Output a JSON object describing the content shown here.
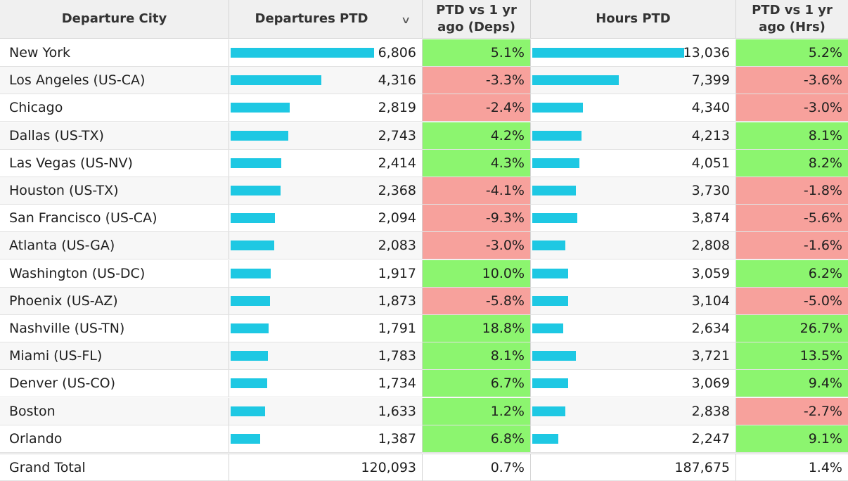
{
  "headers": {
    "city": "Departure City",
    "departures": "Departures PTD",
    "ptd_deps": "PTD vs 1 yr ago (Deps)",
    "hours": "Hours PTD",
    "ptd_hrs": "PTD vs 1 yr ago (Hrs)",
    "sort_icon": "chevron-down-icon"
  },
  "colors": {
    "bar": "#1ec8e3",
    "positive": "#8cf56f",
    "negative": "#f7a19c"
  },
  "rows": [
    {
      "city": "New York",
      "deps": "6,806",
      "deps_value": 6806,
      "ptd_deps": "5.1%",
      "hours": "13,036",
      "hours_value": 13036,
      "ptd_hrs": "5.2%"
    },
    {
      "city": "Los Angeles (US-CA)",
      "deps": "4,316",
      "deps_value": 4316,
      "ptd_deps": "-3.3%",
      "hours": "7,399",
      "hours_value": 7399,
      "ptd_hrs": "-3.6%"
    },
    {
      "city": "Chicago",
      "deps": "2,819",
      "deps_value": 2819,
      "ptd_deps": "-2.4%",
      "hours": "4,340",
      "hours_value": 4340,
      "ptd_hrs": "-3.0%"
    },
    {
      "city": "Dallas (US-TX)",
      "deps": "2,743",
      "deps_value": 2743,
      "ptd_deps": "4.2%",
      "hours": "4,213",
      "hours_value": 4213,
      "ptd_hrs": "8.1%"
    },
    {
      "city": "Las Vegas (US-NV)",
      "deps": "2,414",
      "deps_value": 2414,
      "ptd_deps": "4.3%",
      "hours": "4,051",
      "hours_value": 4051,
      "ptd_hrs": "8.2%"
    },
    {
      "city": "Houston (US-TX)",
      "deps": "2,368",
      "deps_value": 2368,
      "ptd_deps": "-4.1%",
      "hours": "3,730",
      "hours_value": 3730,
      "ptd_hrs": "-1.8%"
    },
    {
      "city": "San Francisco (US-CA)",
      "deps": "2,094",
      "deps_value": 2094,
      "ptd_deps": "-9.3%",
      "hours": "3,874",
      "hours_value": 3874,
      "ptd_hrs": "-5.6%"
    },
    {
      "city": "Atlanta (US-GA)",
      "deps": "2,083",
      "deps_value": 2083,
      "ptd_deps": "-3.0%",
      "hours": "2,808",
      "hours_value": 2808,
      "ptd_hrs": "-1.6%"
    },
    {
      "city": "Washington (US-DC)",
      "deps": "1,917",
      "deps_value": 1917,
      "ptd_deps": "10.0%",
      "hours": "3,059",
      "hours_value": 3059,
      "ptd_hrs": "6.2%"
    },
    {
      "city": "Phoenix (US-AZ)",
      "deps": "1,873",
      "deps_value": 1873,
      "ptd_deps": "-5.8%",
      "hours": "3,104",
      "hours_value": 3104,
      "ptd_hrs": "-5.0%"
    },
    {
      "city": "Nashville (US-TN)",
      "deps": "1,791",
      "deps_value": 1791,
      "ptd_deps": "18.8%",
      "hours": "2,634",
      "hours_value": 2634,
      "ptd_hrs": "26.7%"
    },
    {
      "city": "Miami (US-FL)",
      "deps": "1,783",
      "deps_value": 1783,
      "ptd_deps": "8.1%",
      "hours": "3,721",
      "hours_value": 3721,
      "ptd_hrs": "13.5%"
    },
    {
      "city": "Denver (US-CO)",
      "deps": "1,734",
      "deps_value": 1734,
      "ptd_deps": "6.7%",
      "hours": "3,069",
      "hours_value": 3069,
      "ptd_hrs": "9.4%"
    },
    {
      "city": "Boston",
      "deps": "1,633",
      "deps_value": 1633,
      "ptd_deps": "1.2%",
      "hours": "2,838",
      "hours_value": 2838,
      "ptd_hrs": "-2.7%"
    },
    {
      "city": "Orlando",
      "deps": "1,387",
      "deps_value": 1387,
      "ptd_deps": "6.8%",
      "hours": "2,247",
      "hours_value": 2247,
      "ptd_hrs": "9.1%"
    }
  ],
  "total": {
    "city": "Grand Total",
    "deps": "120,093",
    "ptd_deps": "0.7%",
    "hours": "187,675",
    "ptd_hrs": "1.4%"
  }
}
